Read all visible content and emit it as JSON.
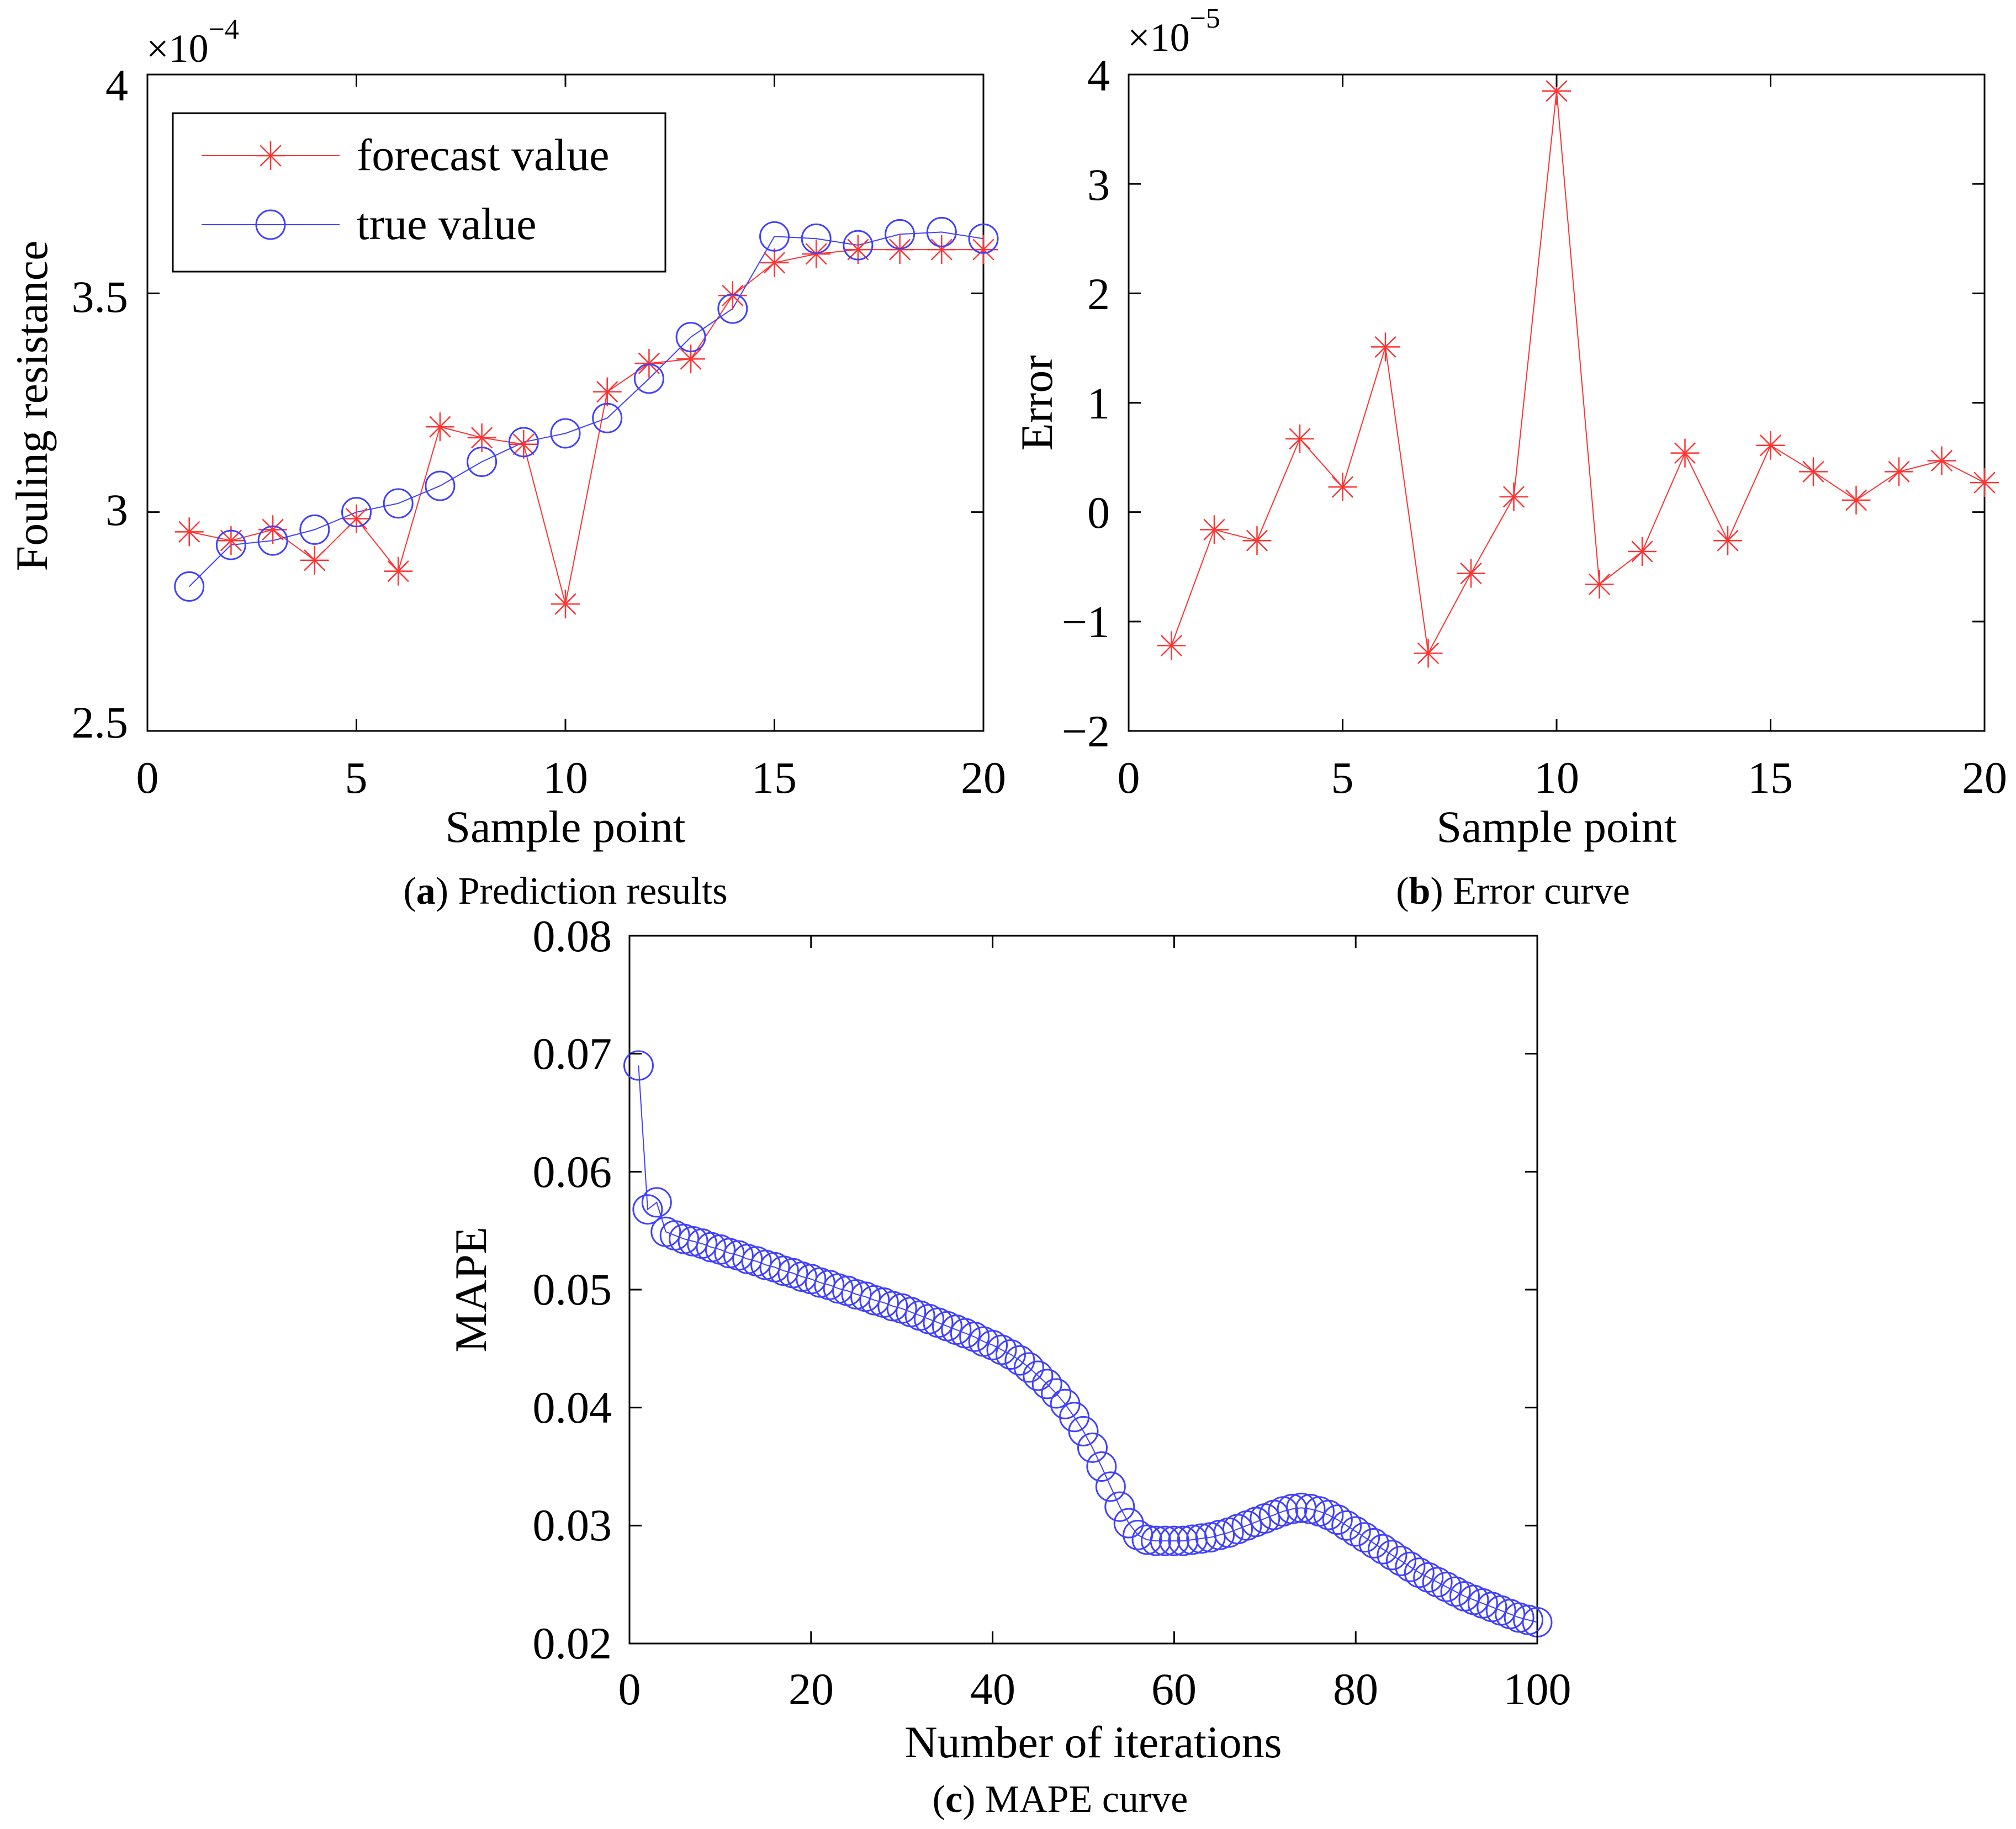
{
  "chart_data": [
    {
      "type": "line",
      "caption_letter": "a",
      "caption_text": " Prediction results",
      "xlabel": "Sample point",
      "ylabel": "Fouling resistance",
      "y_multiplier": "×10",
      "y_exponent": "−4",
      "xlim": [
        0,
        20
      ],
      "ylim": [
        2.5,
        4
      ],
      "xticks": [
        0,
        5,
        10,
        15,
        20
      ],
      "xtick_labels": [
        "0",
        "5",
        "10",
        "15",
        "20"
      ],
      "yticks": [
        2.5,
        3,
        3.5,
        4
      ],
      "ytick_labels": [
        "2.5",
        "3",
        "3.5",
        "4"
      ],
      "legend_position": "top-left",
      "x": [
        1,
        2,
        3,
        4,
        5,
        6,
        7,
        8,
        9,
        10,
        11,
        12,
        13,
        14,
        15,
        16,
        17,
        18,
        19,
        20
      ],
      "series": [
        {
          "name": "forecast value",
          "color": "#ff3333",
          "marker": "asterisk",
          "values": [
            2.955,
            2.935,
            2.96,
            2.89,
            2.985,
            2.865,
            3.195,
            3.17,
            3.155,
            2.79,
            3.275,
            3.34,
            3.35,
            3.495,
            3.57,
            3.59,
            3.6,
            3.6,
            3.6,
            3.6
          ]
        },
        {
          "name": "true value",
          "color": "#4040ff",
          "marker": "circle",
          "values": [
            2.83,
            2.925,
            2.935,
            2.96,
            3.0,
            3.02,
            3.06,
            3.115,
            3.16,
            3.18,
            3.215,
            3.305,
            3.4,
            3.465,
            3.63,
            3.625,
            3.61,
            3.635,
            3.64,
            3.625
          ]
        }
      ]
    },
    {
      "type": "line",
      "caption_letter": "b",
      "caption_text": " Error curve",
      "xlabel": "Sample point",
      "ylabel": "Error",
      "y_multiplier": "×10",
      "y_exponent": "−5",
      "xlim": [
        0,
        20
      ],
      "ylim": [
        -2,
        4
      ],
      "xticks": [
        0,
        5,
        10,
        15,
        20
      ],
      "xtick_labels": [
        "0",
        "5",
        "10",
        "15",
        "20"
      ],
      "yticks": [
        -2,
        -1,
        0,
        1,
        2,
        3,
        4
      ],
      "ytick_labels": [
        "−2",
        "−1",
        "0",
        "1",
        "2",
        "3",
        "4"
      ],
      "x": [
        1,
        2,
        3,
        4,
        5,
        6,
        7,
        8,
        9,
        10,
        11,
        12,
        13,
        14,
        15,
        16,
        17,
        18,
        19,
        20
      ],
      "series": [
        {
          "name": "error",
          "color": "#ff3333",
          "marker": "asterisk",
          "values": [
            -1.22,
            -0.16,
            -0.26,
            0.67,
            0.23,
            1.51,
            -1.29,
            -0.56,
            0.14,
            3.85,
            -0.66,
            -0.36,
            0.54,
            -0.26,
            0.61,
            0.37,
            0.11,
            0.37,
            0.47,
            0.27
          ]
        }
      ]
    },
    {
      "type": "line",
      "caption_letter": "c",
      "caption_text": " MAPE curve",
      "xlabel": "Number of iterations",
      "ylabel": "MAPE",
      "xlim": [
        0,
        100
      ],
      "ylim": [
        0.02,
        0.08
      ],
      "xticks": [
        0,
        20,
        40,
        60,
        80,
        100
      ],
      "xtick_labels": [
        "0",
        "20",
        "40",
        "60",
        "80",
        "100"
      ],
      "yticks": [
        0.02,
        0.03,
        0.04,
        0.05,
        0.06,
        0.07,
        0.08
      ],
      "ytick_labels": [
        "0.02",
        "0.03",
        "0.04",
        "0.05",
        "0.06",
        "0.07",
        "0.08"
      ],
      "x": [
        1,
        2,
        3,
        4,
        5,
        6,
        7,
        8,
        9,
        10,
        11,
        12,
        13,
        14,
        15,
        16,
        17,
        18,
        19,
        20,
        21,
        22,
        23,
        24,
        25,
        26,
        27,
        28,
        29,
        30,
        31,
        32,
        33,
        34,
        35,
        36,
        37,
        38,
        39,
        40,
        41,
        42,
        43,
        44,
        45,
        46,
        47,
        48,
        49,
        50,
        51,
        52,
        53,
        54,
        55,
        56,
        57,
        58,
        59,
        60,
        61,
        62,
        63,
        64,
        65,
        66,
        67,
        68,
        69,
        70,
        71,
        72,
        73,
        74,
        75,
        76,
        77,
        78,
        79,
        80,
        81,
        82,
        83,
        84,
        85,
        86,
        87,
        88,
        89,
        90,
        91,
        92,
        93,
        94,
        95,
        96,
        97,
        98,
        99,
        100
      ],
      "series": [
        {
          "name": "MAPE",
          "color": "#4040ff",
          "marker": "circle",
          "values": [
            0.069,
            0.0568,
            0.0574,
            0.0549,
            0.0546,
            0.0543,
            0.0541,
            0.0539,
            0.0536,
            0.0534,
            0.0531,
            0.0529,
            0.0526,
            0.0524,
            0.0521,
            0.0519,
            0.0516,
            0.0514,
            0.0511,
            0.0509,
            0.0506,
            0.0504,
            0.0501,
            0.0499,
            0.0496,
            0.0494,
            0.0491,
            0.0489,
            0.0486,
            0.0484,
            0.0481,
            0.0478,
            0.0475,
            0.0472,
            0.0469,
            0.0466,
            0.0463,
            0.046,
            0.0456,
            0.0453,
            0.0449,
            0.0445,
            0.044,
            0.0434,
            0.0427,
            0.042,
            0.0412,
            0.0403,
            0.0392,
            0.038,
            0.0366,
            0.035,
            0.0333,
            0.0316,
            0.0302,
            0.0292,
            0.0288,
            0.0287,
            0.0287,
            0.0287,
            0.0287,
            0.0288,
            0.0289,
            0.029,
            0.0292,
            0.0294,
            0.0297,
            0.03,
            0.0303,
            0.0306,
            0.0309,
            0.0312,
            0.0314,
            0.0315,
            0.0314,
            0.0312,
            0.0309,
            0.0305,
            0.03,
            0.0295,
            0.029,
            0.0285,
            0.028,
            0.0275,
            0.027,
            0.0265,
            0.026,
            0.0256,
            0.0252,
            0.0248,
            0.0244,
            0.024,
            0.0237,
            0.0234,
            0.0231,
            0.0228,
            0.0225,
            0.0222,
            0.022,
            0.0218
          ]
        }
      ]
    }
  ]
}
